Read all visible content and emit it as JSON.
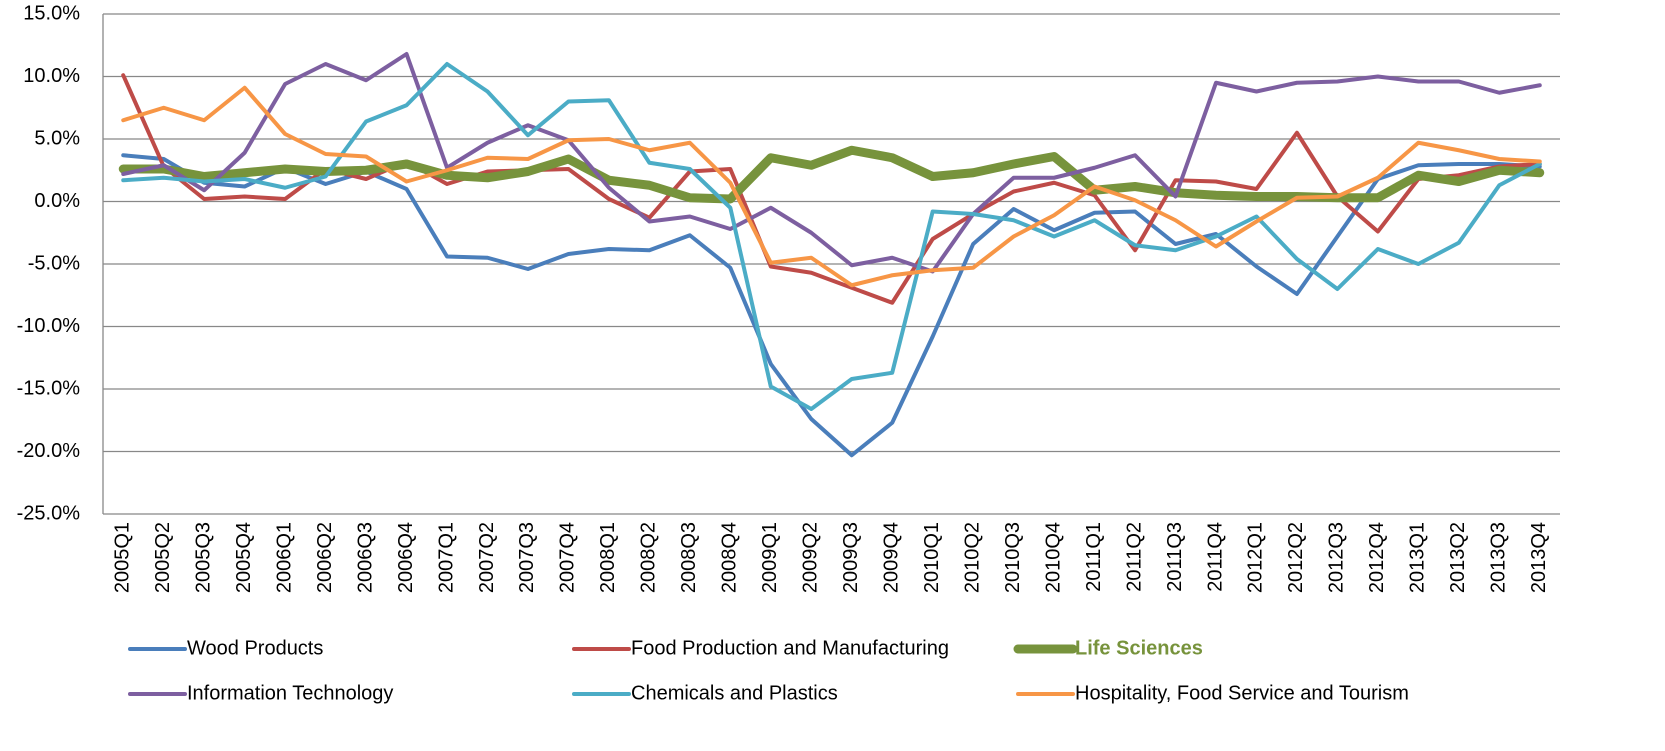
{
  "chart_data": {
    "type": "line",
    "categories": [
      "2005Q1",
      "2005Q2",
      "2005Q3",
      "2005Q4",
      "2006Q1",
      "2006Q2",
      "2006Q3",
      "2006Q4",
      "2007Q1",
      "2007Q2",
      "2007Q3",
      "2007Q4",
      "2008Q1",
      "2008Q2",
      "2008Q3",
      "2008Q4",
      "2009Q1",
      "2009Q2",
      "2009Q3",
      "2009Q4",
      "2010Q1",
      "2010Q2",
      "2010Q3",
      "2010Q4",
      "2011Q1",
      "2011Q2",
      "2011Q3",
      "2011Q4",
      "2012Q1",
      "2012Q2",
      "2012Q3",
      "2012Q4",
      "2013Q1",
      "2013Q2",
      "2013Q3",
      "2013Q4"
    ],
    "series": [
      {
        "name": "Wood Products",
        "color": "#4a7ebb",
        "values": [
          3.7,
          3.4,
          1.5,
          1.2,
          2.7,
          1.4,
          2.4,
          1.0,
          -4.4,
          -4.5,
          -5.4,
          -4.2,
          -3.8,
          -3.9,
          -2.7,
          -5.3,
          -13.0,
          -17.4,
          -20.3,
          -17.7,
          -10.8,
          -3.4,
          -0.6,
          -2.3,
          -0.9,
          -0.8,
          -3.4,
          -2.6,
          -5.2,
          -7.4,
          -2.8,
          1.8,
          2.9,
          3.0,
          3.0,
          2.8
        ]
      },
      {
        "name": "Food Production and  Manufacturing",
        "color": "#be4b48",
        "values": [
          10.1,
          2.8,
          0.2,
          0.4,
          0.2,
          2.6,
          1.8,
          3.2,
          1.4,
          2.4,
          2.5,
          2.6,
          0.2,
          -1.3,
          2.4,
          2.6,
          -5.2,
          -5.7,
          -6.9,
          -8.1,
          -3.0,
          -1.0,
          0.8,
          1.5,
          0.5,
          -3.9,
          1.7,
          1.6,
          1.0,
          5.5,
          0.4,
          -2.4,
          1.8,
          2.1,
          2.8,
          3.0
        ]
      },
      {
        "name": "Life Sciences",
        "color": "#77933c",
        "highlight": true,
        "values": [
          2.6,
          2.6,
          2.0,
          2.3,
          2.6,
          2.4,
          2.5,
          3.0,
          2.1,
          1.9,
          2.4,
          3.4,
          1.7,
          1.3,
          0.3,
          0.2,
          3.5,
          2.9,
          4.1,
          3.5,
          2.0,
          2.3,
          3.0,
          3.6,
          0.9,
          1.2,
          0.7,
          0.5,
          0.4,
          0.4,
          0.3,
          0.3,
          2.1,
          1.6,
          2.5,
          2.3
        ]
      },
      {
        "name": "Information Technology",
        "color": "#7d5fa0",
        "values": [
          2.2,
          2.9,
          0.9,
          3.9,
          9.4,
          11.0,
          9.7,
          11.8,
          2.7,
          4.7,
          6.1,
          4.9,
          1.1,
          -1.6,
          -1.2,
          -2.2,
          -0.5,
          -2.5,
          -5.1,
          -4.5,
          -5.6,
          -1.0,
          1.9,
          1.9,
          2.7,
          3.7,
          0.4,
          9.5,
          8.8,
          9.5,
          9.6,
          10.0,
          9.6,
          9.6,
          8.7,
          9.3
        ]
      },
      {
        "name": "Chemicals and Plastics",
        "color": "#4bacc6",
        "values": [
          1.7,
          1.9,
          1.6,
          1.8,
          1.1,
          2.0,
          6.4,
          7.7,
          11.0,
          8.8,
          5.3,
          8.0,
          8.1,
          3.1,
          2.6,
          -0.5,
          -14.8,
          -16.6,
          -14.2,
          -13.7,
          -0.8,
          -1.0,
          -1.5,
          -2.8,
          -1.5,
          -3.5,
          -3.9,
          -2.8,
          -1.2,
          -4.6,
          -7.0,
          -3.8,
          -5.0,
          -3.3,
          1.3,
          3.0
        ]
      },
      {
        "name": "Hospitality, Food Service and Tourism",
        "color": "#f79646",
        "values": [
          6.5,
          7.5,
          6.5,
          9.1,
          5.4,
          3.8,
          3.6,
          1.6,
          2.5,
          3.5,
          3.4,
          4.9,
          5.0,
          4.1,
          4.7,
          1.5,
          -4.9,
          -4.5,
          -6.7,
          -5.9,
          -5.5,
          -5.3,
          -2.8,
          -1.1,
          1.2,
          0.1,
          -1.5,
          -3.6,
          -1.6,
          0.3,
          0.4,
          1.9,
          4.7,
          4.1,
          3.4,
          3.2
        ]
      }
    ],
    "ylim": [
      -25,
      15
    ],
    "yticks": [
      {
        "value": -25,
        "label": "-25.0%"
      },
      {
        "value": -20,
        "label": "-20.0%"
      },
      {
        "value": -15,
        "label": "-15.0%"
      },
      {
        "value": -10,
        "label": "-10.0%"
      },
      {
        "value": -5,
        "label": "-5.0%"
      },
      {
        "value": 0,
        "label": "0.0%"
      },
      {
        "value": 5,
        "label": "5.0%"
      },
      {
        "value": 10,
        "label": "10.0%"
      },
      {
        "value": 15,
        "label": "15.0%"
      }
    ],
    "grid": true,
    "legend": "bottom"
  }
}
